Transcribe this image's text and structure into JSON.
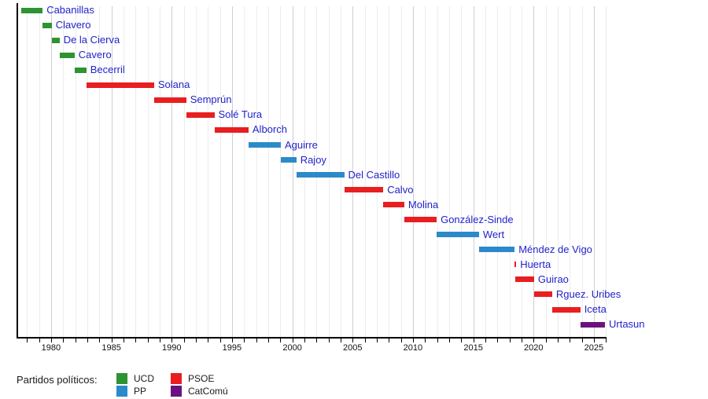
{
  "chart_data": {
    "type": "bar",
    "variant": "horizontal-timeline-gantt",
    "title": "",
    "x_axis": {
      "unit": "year",
      "range": [
        1977.2,
        2026
      ],
      "minor_tick_interval": 1,
      "major_tick_interval": 5,
      "tick_labels": [
        "1980",
        "1985",
        "1990",
        "1995",
        "2000",
        "2005",
        "2010",
        "2015",
        "2020",
        "2025"
      ],
      "grid": "on"
    },
    "parties": {
      "UCD": "#2e9331",
      "PP": "#2b8ac9",
      "PSOE": "#e81e20",
      "CatComú": "#6b1280"
    },
    "series": [
      {
        "name": "Cabanillas",
        "party": "UCD",
        "start": 1977.55,
        "end": 1979.3
      },
      {
        "name": "Clavero",
        "party": "UCD",
        "start": 1979.3,
        "end": 1980.05
      },
      {
        "name": "De la Cierva",
        "party": "UCD",
        "start": 1980.05,
        "end": 1980.7
      },
      {
        "name": "Cavero",
        "party": "UCD",
        "start": 1980.7,
        "end": 1981.95
      },
      {
        "name": "Becerril",
        "party": "UCD",
        "start": 1981.95,
        "end": 1982.92
      },
      {
        "name": "Solana",
        "party": "PSOE",
        "start": 1982.92,
        "end": 1988.54
      },
      {
        "name": "Semprún",
        "party": "PSOE",
        "start": 1988.54,
        "end": 1991.2
      },
      {
        "name": "Solé Tura",
        "party": "PSOE",
        "start": 1991.2,
        "end": 1993.54
      },
      {
        "name": "Alborch",
        "party": "PSOE",
        "start": 1993.54,
        "end": 1996.37
      },
      {
        "name": "Aguirre",
        "party": "PP",
        "start": 1996.37,
        "end": 1999.05
      },
      {
        "name": "Rajoy",
        "party": "PP",
        "start": 1999.05,
        "end": 2000.33
      },
      {
        "name": "Del Castillo",
        "party": "PP",
        "start": 2000.33,
        "end": 2004.3
      },
      {
        "name": "Calvo",
        "party": "PSOE",
        "start": 2004.3,
        "end": 2007.54
      },
      {
        "name": "Molina",
        "party": "PSOE",
        "start": 2007.54,
        "end": 2009.28
      },
      {
        "name": "González-Sinde",
        "party": "PSOE",
        "start": 2009.28,
        "end": 2011.97
      },
      {
        "name": "Wert",
        "party": "PP",
        "start": 2011.97,
        "end": 2015.48
      },
      {
        "name": "Méndez de Vigo",
        "party": "PP",
        "start": 2015.48,
        "end": 2018.43
      },
      {
        "name": "Huerta",
        "party": "PSOE",
        "start": 2018.43,
        "end": 2018.46
      },
      {
        "name": "Guirao",
        "party": "PSOE",
        "start": 2018.46,
        "end": 2020.04
      },
      {
        "name": "Rguez. Uribes",
        "party": "PSOE",
        "start": 2020.04,
        "end": 2021.54
      },
      {
        "name": "Iceta",
        "party": "PSOE",
        "start": 2021.54,
        "end": 2023.88
      },
      {
        "name": "Urtasun",
        "party": "CatComú",
        "start": 2023.88,
        "end": 2025.92
      }
    ]
  },
  "legend": {
    "title": "Partidos políticos:",
    "items": [
      {
        "label": "UCD",
        "color": "#2e9331"
      },
      {
        "label": "PP",
        "color": "#2b8ac9"
      },
      {
        "label": "PSOE",
        "color": "#e81e20"
      },
      {
        "label": "CatComú",
        "color": "#6b1280"
      }
    ]
  },
  "colors": {
    "bar_label_text": "#2222cc",
    "axis": "#000000",
    "gridline_minor": "#ececec",
    "gridline_major": "#cfcfcf",
    "tick_text": "#111111",
    "background": "#ffffff"
  }
}
